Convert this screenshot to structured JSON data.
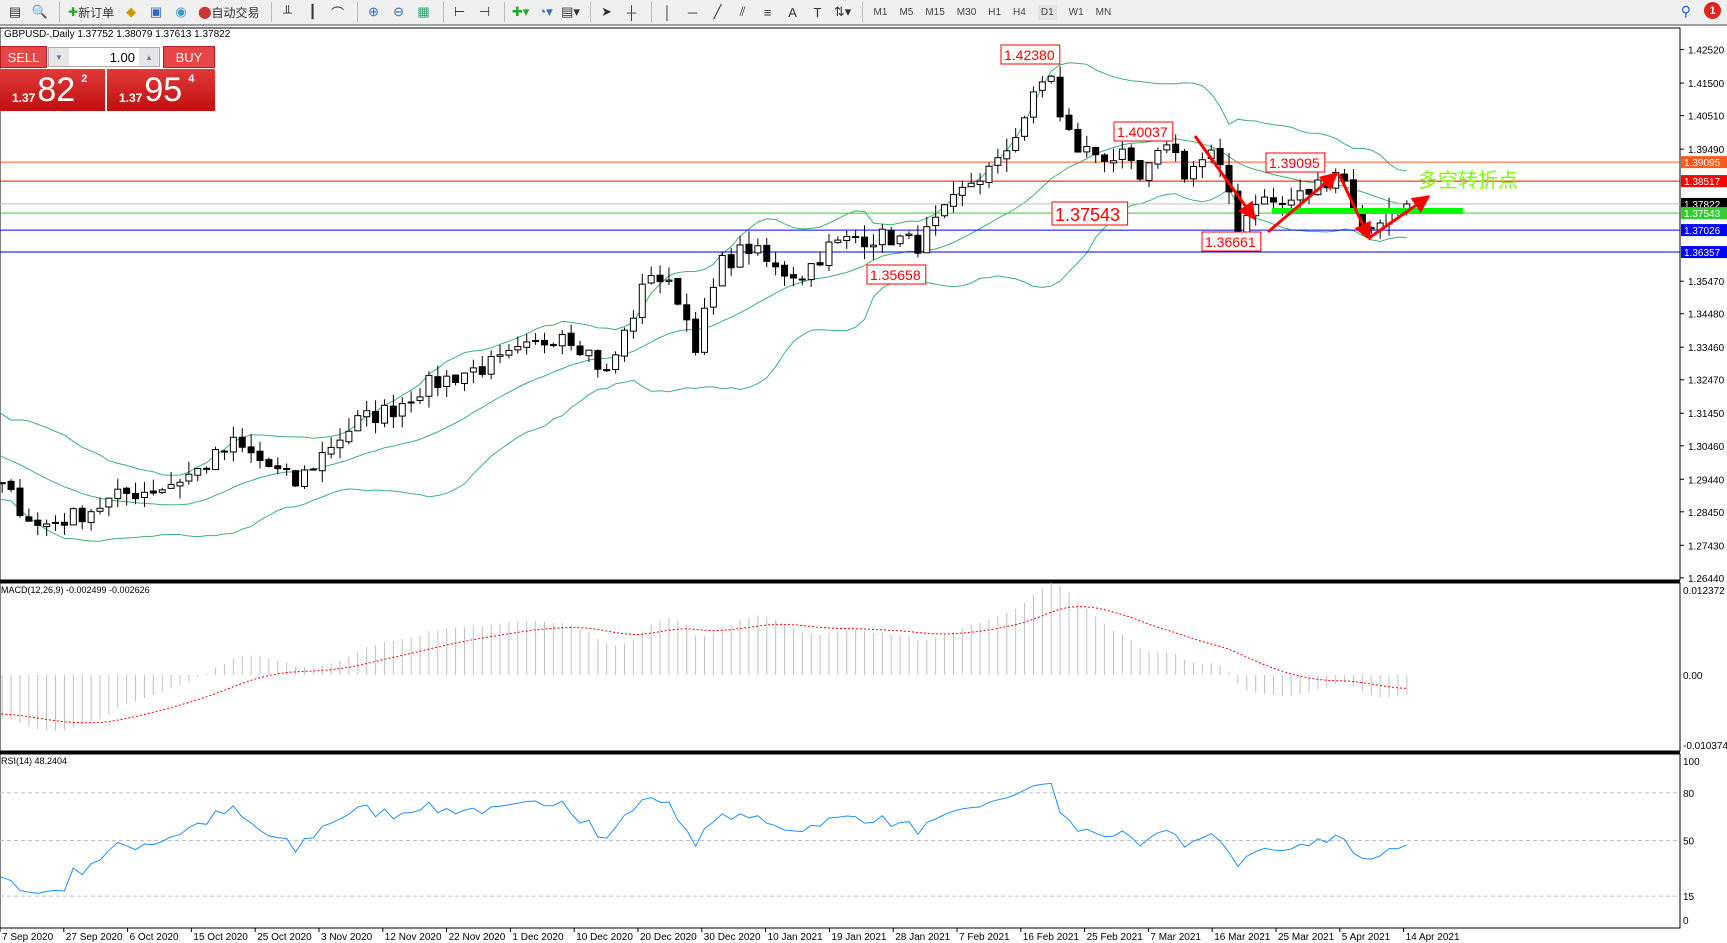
{
  "toolbar": {
    "new_order": "新订单",
    "auto_trading": "自动交易",
    "timeframes": [
      "M1",
      "M5",
      "M15",
      "M30",
      "H1",
      "H4",
      "D1",
      "W1",
      "MN"
    ],
    "active_timeframe": "D1",
    "notification_count": "1"
  },
  "chart_header": "GBPUSD-,Daily  1.37752 1.38079 1.37613 1.37822",
  "trade_panel": {
    "sell": "SELL",
    "buy": "BUY",
    "lot": "1.00",
    "bid_small": "1.37",
    "bid_big": "82",
    "bid_sup": "2",
    "ask_small": "1.37",
    "ask_big": "95",
    "ask_sup": "4"
  },
  "price_axis": [
    "1.42520",
    "1.41500",
    "1.40510",
    "1.39490",
    "1.35470",
    "1.34480",
    "1.33460",
    "1.32470",
    "1.31450",
    "1.30460",
    "1.29440",
    "1.28450",
    "1.27430",
    "1.26440"
  ],
  "levels": [
    {
      "price": "1.39095",
      "color": "#ff5a1e"
    },
    {
      "price": "1.38517",
      "color": "#ff0000"
    },
    {
      "price": "1.37822",
      "color": "#000000",
      "line": "#c0c0c0"
    },
    {
      "price": "1.37543",
      "color": "#32cd32"
    },
    {
      "price": "1.37026",
      "color": "#0000ff"
    },
    {
      "price": "1.36357",
      "color": "#0000ff"
    }
  ],
  "annotations": [
    "1.42380",
    "1.40037",
    "1.39095",
    "1.37543",
    "1.36661",
    "1.35658"
  ],
  "turning_point_text": "多空转折点",
  "macd": {
    "label": "MACD(12,26,9) -0.002499 -0.002626",
    "top": "0.012372",
    "zero": "0.00",
    "bottom": "-0.010374"
  },
  "rsi": {
    "label": "RSI(14) 48.2404",
    "levels": [
      "100",
      "80",
      "50",
      "15",
      "0"
    ]
  },
  "dates": [
    "7 Sep 2020",
    "27 Sep 2020",
    "6 Oct 2020",
    "15 Oct 2020",
    "25 Oct 2020",
    "3 Nov 2020",
    "12 Nov 2020",
    "22 Nov 2020",
    "1 Dec 2020",
    "10 Dec 2020",
    "20 Dec 2020",
    "30 Dec 2020",
    "10 Jan 2021",
    "19 Jan 2021",
    "28 Jan 2021",
    "7 Feb 2021",
    "16 Feb 2021",
    "25 Feb 2021",
    "7 Mar 2021",
    "16 Mar 2021",
    "25 Mar 2021",
    "5 Apr 2021",
    "14 Apr 2021"
  ],
  "price_anchors": [
    [
      -40,
      1.33
    ],
    [
      -25,
      1.32
    ],
    [
      -10,
      1.3
    ],
    [
      0,
      1.292
    ],
    [
      4,
      1.28
    ],
    [
      8,
      1.283
    ],
    [
      14,
      1.29
    ],
    [
      18,
      1.292
    ],
    [
      22,
      1.297
    ],
    [
      26,
      1.305
    ],
    [
      29,
      1.3
    ],
    [
      33,
      1.293
    ],
    [
      37,
      1.305
    ],
    [
      40,
      1.312
    ],
    [
      44,
      1.316
    ],
    [
      47,
      1.322
    ],
    [
      52,
      1.327
    ],
    [
      56,
      1.33
    ],
    [
      60,
      1.335
    ],
    [
      63,
      1.34
    ],
    [
      66,
      1.333
    ],
    [
      68,
      1.326
    ],
    [
      71,
      1.345
    ],
    [
      73,
      1.358
    ],
    [
      76,
      1.35
    ],
    [
      78,
      1.336
    ],
    [
      81,
      1.36
    ],
    [
      84,
      1.365
    ],
    [
      87,
      1.358
    ],
    [
      90,
      1.357
    ],
    [
      93,
      1.365
    ],
    [
      96,
      1.368
    ],
    [
      100,
      1.368
    ],
    [
      103,
      1.366
    ],
    [
      106,
      1.375
    ],
    [
      109,
      1.385
    ],
    [
      112,
      1.39
    ],
    [
      115,
      1.405
    ],
    [
      117,
      1.415
    ],
    [
      118,
      1.418
    ],
    [
      119,
      1.404
    ],
    [
      121,
      1.395
    ],
    [
      124,
      1.393
    ],
    [
      126,
      1.392
    ],
    [
      128,
      1.385
    ],
    [
      130,
      1.392
    ],
    [
      131,
      1.398
    ],
    [
      133,
      1.388
    ],
    [
      136,
      1.393
    ],
    [
      138,
      1.382
    ],
    [
      139,
      1.37
    ],
    [
      141,
      1.38
    ],
    [
      144,
      1.378
    ],
    [
      147,
      1.382
    ],
    [
      149,
      1.386
    ],
    [
      150,
      1.389
    ],
    [
      151,
      1.385
    ],
    [
      153,
      1.37
    ],
    [
      155,
      1.374
    ],
    [
      158,
      1.378
    ]
  ],
  "colors": {
    "bollinger": "#3cb371",
    "macd_hist": "#c0c0c0",
    "macd_signal": "#ff0000",
    "rsi": "#1e90ff",
    "annotation": "#ff0000",
    "turning_text": "#7cfc00",
    "support_bar": "#00ff00"
  }
}
